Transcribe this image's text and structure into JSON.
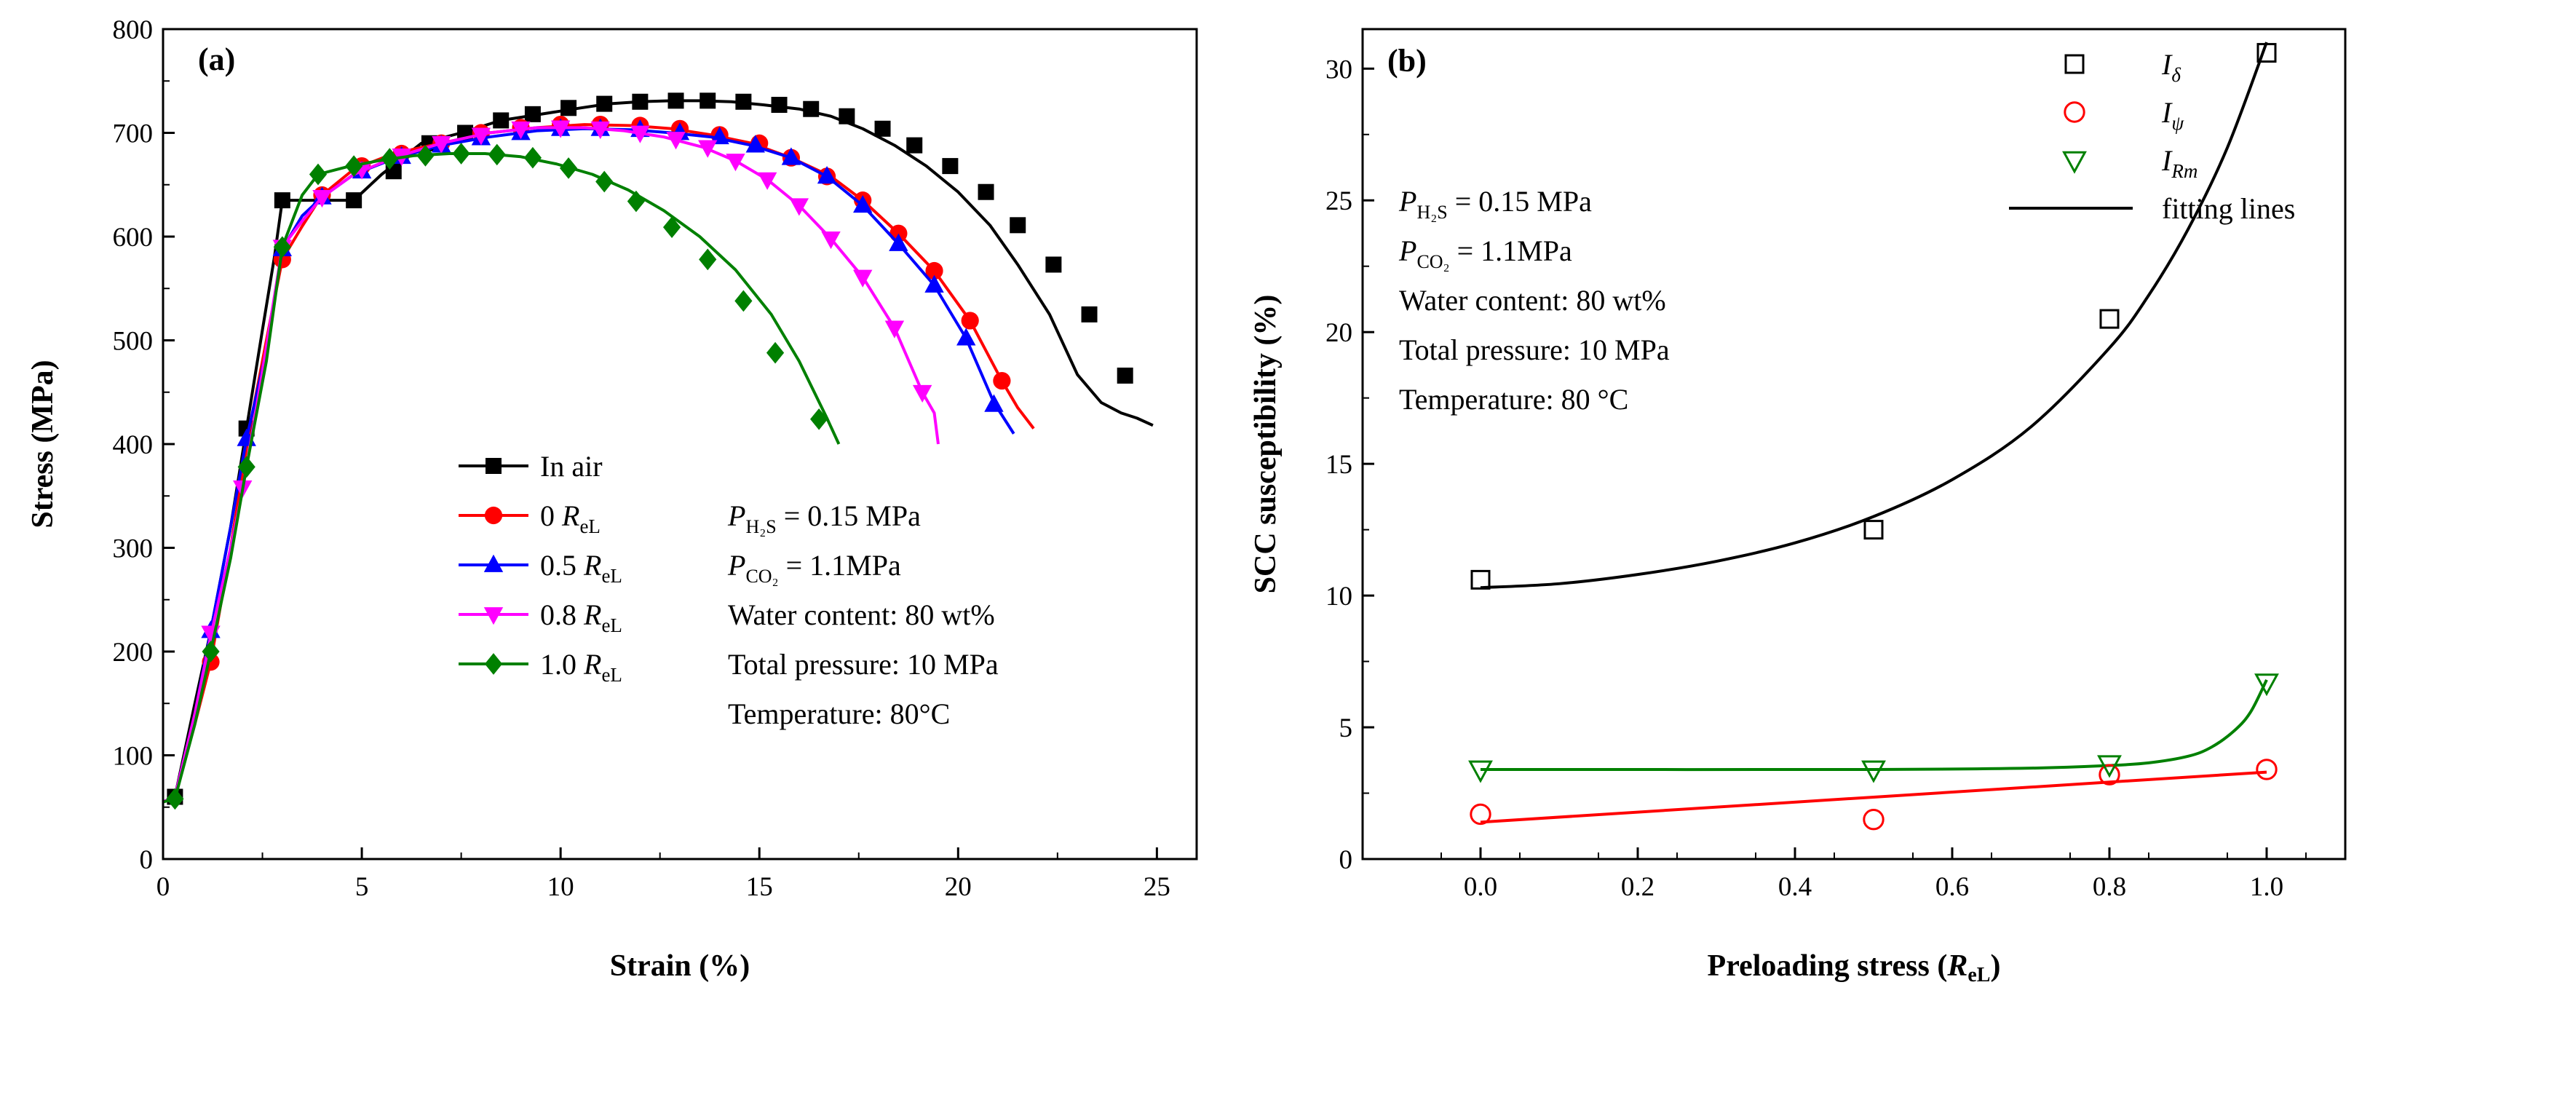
{
  "chart_data": [
    {
      "panel": "(a)",
      "type": "line",
      "title": "",
      "xlabel": "Strain (%)",
      "ylabel": "Stress (MPa)",
      "xlim": [
        0,
        26
      ],
      "ylim": [
        0,
        800
      ],
      "xticks": [
        "0",
        "5",
        "10",
        "15",
        "20",
        "25"
      ],
      "yticks": [
        "0",
        "100",
        "200",
        "300",
        "400",
        "500",
        "600",
        "700",
        "800"
      ],
      "legend_position": "center-right",
      "series": [
        {
          "name": "In air",
          "name_main": "In air",
          "name_sub": "",
          "color": "#000000",
          "marker": "square",
          "x": [
            0.0,
            0.3,
            0.8,
            1.2,
            1.7,
            2.1,
            2.5,
            2.8,
            3.0,
            3.2,
            3.6,
            4.0,
            4.8,
            5.5,
            6.5,
            7.5,
            8.5,
            9.5,
            10.5,
            11.2,
            12.0,
            12.8,
            13.5,
            14.3,
            15.1,
            16.0,
            16.8,
            17.6,
            18.4,
            19.2,
            20.0,
            20.8,
            21.5,
            22.3,
            23.0,
            23.6,
            24.1,
            24.5,
            24.9
          ],
          "y": [
            55,
            60,
            150,
            220,
            320,
            415,
            510,
            580,
            635,
            635,
            635,
            635,
            635,
            660,
            690,
            700,
            712,
            718,
            724,
            728,
            730,
            731,
            731,
            730,
            727,
            723,
            716,
            704,
            688,
            668,
            643,
            611,
            573,
            525,
            467,
            440,
            430,
            425,
            418
          ],
          "marker_x": [
            0.3,
            2.1,
            3.0,
            4.8,
            5.8,
            6.7,
            7.6,
            8.5,
            9.3,
            10.2,
            11.1,
            12.0,
            12.9,
            13.7,
            14.6,
            15.5,
            16.3,
            17.2,
            18.1,
            18.9,
            19.8,
            20.7,
            21.5,
            22.4,
            23.3,
            24.2
          ],
          "marker_y": [
            60,
            415,
            635,
            635,
            663,
            690,
            700,
            712,
            718,
            724,
            728,
            730,
            731,
            731,
            730,
            727,
            723,
            716,
            704,
            688,
            668,
            643,
            611,
            573,
            525,
            466
          ]
        },
        {
          "name": "0 ReL",
          "name_main": "0 ",
          "name_sub": "eL",
          "color": "#ff0000",
          "marker": "circle",
          "x": [
            0.0,
            0.3,
            0.8,
            1.2,
            1.7,
            2.2,
            2.6,
            3.0,
            3.5,
            4.0,
            4.8,
            5.8,
            7.0,
            8.2,
            9.4,
            10.6,
            11.8,
            12.8,
            13.8,
            14.8,
            15.8,
            16.8,
            17.6,
            18.5,
            19.4,
            20.3,
            21.1,
            21.5,
            21.9
          ],
          "y": [
            55,
            60,
            130,
            190,
            300,
            420,
            500,
            578,
            610,
            640,
            665,
            680,
            690,
            700,
            705,
            708,
            707,
            704,
            698,
            690,
            676,
            658,
            635,
            603,
            567,
            519,
            461,
            435,
            415
          ],
          "marker_x": [
            1.2,
            3.0,
            4.0,
            5.0,
            6.0,
            7.0,
            8.0,
            9.0,
            10.0,
            11.0,
            12.0,
            13.0,
            14.0,
            15.0,
            15.8,
            16.7,
            17.6,
            18.5,
            19.4,
            20.3,
            21.1
          ],
          "marker_y": [
            190,
            578,
            640,
            668,
            680,
            690,
            700,
            705,
            708,
            708,
            707,
            704,
            698,
            690,
            676,
            658,
            635,
            603,
            567,
            519,
            461
          ]
        },
        {
          "name": "0.5 ReL",
          "name_main": "0.5 ",
          "name_sub": "eL",
          "color": "#0000ff",
          "marker": "triangle-up",
          "x": [
            0.0,
            0.3,
            0.8,
            1.2,
            1.7,
            2.1,
            2.6,
            3.0,
            3.5,
            4.0,
            4.8,
            5.8,
            7.0,
            8.2,
            9.4,
            10.6,
            11.8,
            12.8,
            13.8,
            14.8,
            15.8,
            16.7,
            17.6,
            18.5,
            19.4,
            20.2,
            20.9,
            21.4
          ],
          "y": [
            55,
            60,
            140,
            220,
            320,
            405,
            490,
            588,
            620,
            638,
            660,
            675,
            688,
            696,
            702,
            704,
            703,
            700,
            696,
            688,
            676,
            658,
            630,
            593,
            553,
            502,
            440,
            410
          ],
          "marker_x": [
            1.2,
            2.1,
            3.0,
            4.0,
            5.0,
            6.0,
            7.0,
            8.0,
            9.0,
            10.0,
            11.0,
            12.0,
            13.0,
            14.0,
            14.9,
            15.8,
            16.7,
            17.6,
            18.5,
            19.4,
            20.2,
            20.9
          ],
          "marker_y": [
            220,
            405,
            588,
            638,
            663,
            677,
            688,
            695,
            700,
            704,
            704,
            703,
            700,
            696,
            688,
            676,
            658,
            630,
            593,
            553,
            502,
            438
          ]
        },
        {
          "name": "0.8 ReL",
          "name_main": "0.8 ",
          "name_sub": "eL",
          "color": "#ff00ff",
          "marker": "triangle-down",
          "x": [
            0.0,
            0.3,
            0.8,
            1.2,
            1.7,
            2.0,
            2.5,
            3.0,
            3.5,
            4.0,
            4.8,
            5.8,
            7.0,
            8.2,
            9.4,
            10.6,
            11.6,
            12.6,
            13.6,
            14.4,
            15.2,
            16.0,
            16.8,
            17.6,
            18.4,
            19.1,
            19.4,
            19.5
          ],
          "y": [
            55,
            60,
            140,
            215,
            300,
            355,
            470,
            590,
            615,
            638,
            660,
            676,
            690,
            700,
            705,
            705,
            702,
            696,
            686,
            673,
            655,
            630,
            598,
            561,
            512,
            450,
            430,
            400
          ],
          "marker_x": [
            1.2,
            2.0,
            3.0,
            4.0,
            5.0,
            6.0,
            7.0,
            8.0,
            9.0,
            10.0,
            11.0,
            12.0,
            12.9,
            13.7,
            14.4,
            15.2,
            16.0,
            16.8,
            17.6,
            18.4,
            19.1
          ],
          "marker_y": [
            218,
            358,
            590,
            638,
            665,
            678,
            690,
            698,
            704,
            705,
            704,
            700,
            694,
            686,
            673,
            655,
            630,
            598,
            561,
            512,
            450
          ]
        },
        {
          "name": "1.0 ReL",
          "name_main": "1.0 ",
          "name_sub": "eL",
          "color": "#008000",
          "marker": "diamond",
          "x": [
            0.0,
            0.3,
            0.8,
            1.2,
            1.7,
            2.1,
            2.6,
            3.0,
            3.5,
            3.9,
            4.6,
            5.4,
            6.3,
            7.2,
            8.1,
            9.0,
            9.9,
            10.8,
            11.7,
            12.6,
            13.5,
            14.4,
            15.3,
            16.0,
            16.7,
            17.0
          ],
          "y": [
            55,
            58,
            130,
            200,
            290,
            378,
            480,
            590,
            640,
            660,
            667,
            673,
            678,
            680,
            680,
            677,
            670,
            660,
            645,
            625,
            600,
            568,
            525,
            480,
            425,
            400
          ],
          "marker_x": [
            0.3,
            1.2,
            2.1,
            3.0,
            3.9,
            4.8,
            5.7,
            6.6,
            7.5,
            8.4,
            9.3,
            10.2,
            11.1,
            11.9,
            12.8,
            13.7,
            14.6,
            15.4,
            16.5
          ],
          "marker_y": [
            58,
            200,
            378,
            590,
            660,
            668,
            675,
            678,
            680,
            679,
            676,
            666,
            653,
            634,
            609,
            578,
            538,
            488,
            424
          ]
        }
      ],
      "annotations": [
        {
          "main": "P",
          "sub": "H₂S",
          "rest": " = 0.15 MPa"
        },
        {
          "main": "P",
          "sub": "CO₂",
          "rest": " = 1.1MPa"
        },
        {
          "main": "Water content: 80 wt%",
          "sub": "",
          "rest": ""
        },
        {
          "main": "Total pressure: 10 MPa",
          "sub": "",
          "rest": ""
        },
        {
          "main": "Temperature: 80°C",
          "sub": "",
          "rest": ""
        }
      ]
    },
    {
      "panel": "(b)",
      "type": "scatter",
      "title": "",
      "xlabel_main": "Preloading stress (",
      "xlabel_var": "R",
      "xlabel_sub": "eL",
      "xlabel_end": ")",
      "xlabel": "Preloading stress (ReL)",
      "ylabel": "SCC susceptibility (%)",
      "xlim": [
        -0.15,
        1.1
      ],
      "ylim": [
        0,
        31.5
      ],
      "xticks": [
        "0.0",
        "0.2",
        "0.4",
        "0.6",
        "0.8",
        "1.0"
      ],
      "yticks": [
        "0",
        "5",
        "10",
        "15",
        "20",
        "25",
        "30"
      ],
      "legend_position": "top-right",
      "series": [
        {
          "name": "Iδ",
          "name_main": "I",
          "name_sub": "δ",
          "color": "#000000",
          "marker": "square-open",
          "x": [
            0.0,
            0.5,
            0.8,
            1.0
          ],
          "y": [
            10.6,
            12.5,
            20.5,
            30.6
          ]
        },
        {
          "name": "Iψ",
          "name_main": "I",
          "name_sub": "ψ",
          "color": "#ff0000",
          "marker": "circle-open",
          "x": [
            0.0,
            0.5,
            0.8,
            1.0
          ],
          "y": [
            1.7,
            1.5,
            3.2,
            3.4
          ]
        },
        {
          "name": "IRm",
          "name_main": "I",
          "name_sub": "Rm",
          "color": "#008000",
          "marker": "triangle-down-open",
          "x": [
            0.0,
            0.5,
            0.8,
            1.0
          ],
          "y": [
            3.4,
            3.4,
            3.6,
            6.7
          ]
        }
      ],
      "fitting_lines": {
        "label": "fitting lines",
        "curves": [
          {
            "color": "#000000",
            "x": [
              0.0,
              0.1,
              0.2,
              0.3,
              0.4,
              0.5,
              0.6,
              0.7,
              0.8,
              0.85,
              0.9,
              0.95,
              1.0
            ],
            "y": [
              10.3,
              10.45,
              10.8,
              11.3,
              12.0,
              13.0,
              14.4,
              16.4,
              19.4,
              21.4,
              23.9,
              27.0,
              31.0
            ]
          },
          {
            "color": "#ff0000",
            "x": [
              0.0,
              1.0
            ],
            "y": [
              1.4,
              3.3
            ]
          },
          {
            "color": "#008000",
            "x": [
              0.0,
              0.5,
              0.7,
              0.8,
              0.85,
              0.9,
              0.93,
              0.96,
              0.98,
              1.0
            ],
            "y": [
              3.4,
              3.4,
              3.45,
              3.55,
              3.65,
              3.9,
              4.25,
              4.9,
              5.6,
              6.8
            ]
          }
        ]
      },
      "annotations": [
        {
          "main": "P",
          "sub": "H₂S",
          "rest": " = 0.15 MPa"
        },
        {
          "main": "P",
          "sub": "CO₂",
          "rest": " = 1.1MPa"
        },
        {
          "main": "Water content: 80 wt%",
          "sub": "",
          "rest": ""
        },
        {
          "main": "Total pressure: 10 MPa",
          "sub": "",
          "rest": ""
        },
        {
          "main": "Temperature: 80 °C",
          "sub": "",
          "rest": ""
        }
      ]
    }
  ]
}
